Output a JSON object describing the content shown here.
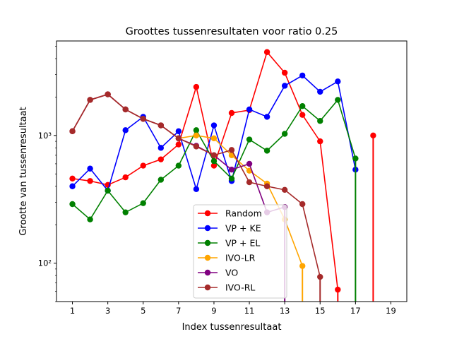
{
  "chart_data": {
    "type": "line",
    "title": "Groottes tussenresultaten voor ratio 0.25",
    "xlabel": "Index tussenresultaat",
    "ylabel": "Grootte van tussenresultaat",
    "yscale": "log",
    "xlim": [
      0.1,
      19.9
    ],
    "ylim": [
      50,
      5500
    ],
    "xticks": [
      1,
      3,
      5,
      7,
      9,
      11,
      13,
      15,
      17,
      19
    ],
    "xtick_labels": [
      "1",
      "3",
      "5",
      "7",
      "9",
      "11",
      "13",
      "15",
      "17",
      "19"
    ],
    "yticks": [
      100,
      1000
    ],
    "ytick_labels": [
      "10²",
      "10³"
    ],
    "legend_position": "lower-center",
    "series": [
      {
        "name": "Random",
        "color": "#ff0000",
        "x": [
          1,
          2,
          3,
          4,
          5,
          6,
          7,
          8,
          9,
          10,
          11,
          12,
          13,
          14,
          15,
          16,
          18
        ],
        "y": [
          460,
          440,
          410,
          470,
          580,
          650,
          850,
          2400,
          580,
          1500,
          1580,
          4500,
          3100,
          1450,
          900,
          62,
          1000
        ],
        "drop_to_axis_from": [
          16,
          18
        ],
        "skip_segment_before": [
          18
        ]
      },
      {
        "name": "VP + KE",
        "color": "#0000ff",
        "x": [
          1,
          2,
          3,
          4,
          5,
          6,
          7,
          8,
          9,
          10,
          11,
          12,
          13,
          14,
          15,
          16,
          17
        ],
        "y": [
          400,
          550,
          370,
          1100,
          1400,
          800,
          1080,
          380,
          1200,
          440,
          1600,
          1400,
          2450,
          2950,
          2200,
          2650,
          540
        ],
        "drop_to_axis_from": [],
        "skip_segment_before": []
      },
      {
        "name": "VP + EL",
        "color": "#008000",
        "x": [
          1,
          2,
          3,
          4,
          5,
          6,
          7,
          8,
          9,
          10,
          11,
          12,
          13,
          14,
          15,
          16,
          17
        ],
        "y": [
          290,
          220,
          370,
          250,
          295,
          450,
          580,
          1100,
          630,
          460,
          930,
          760,
          1030,
          1700,
          1300,
          1900,
          660
        ],
        "drop_to_axis_from": [
          17
        ],
        "skip_segment_before": []
      },
      {
        "name": "IVO-LR",
        "color": "#ffa500",
        "x": [
          1,
          2,
          3,
          4,
          5,
          6,
          7,
          8,
          9,
          10,
          11,
          12,
          13,
          14
        ],
        "y": [
          1080,
          1900,
          2100,
          1600,
          1350,
          1200,
          950,
          1000,
          950,
          700,
          530,
          420,
          220,
          95
        ],
        "drop_to_axis_from": [
          14
        ],
        "skip_segment_before": []
      },
      {
        "name": "VO",
        "color": "#800080",
        "x": [
          1,
          2,
          3,
          4,
          5,
          6,
          7,
          8,
          9,
          10,
          11,
          12,
          13
        ],
        "y": [
          1080,
          1900,
          2100,
          1600,
          1350,
          1200,
          950,
          830,
          700,
          540,
          600,
          250,
          275
        ],
        "drop_to_axis_from": [
          13
        ],
        "skip_segment_before": []
      },
      {
        "name": "IVO-RL",
        "color": "#a52a2a",
        "x": [
          1,
          2,
          3,
          4,
          5,
          6,
          7,
          8,
          9,
          10,
          11,
          12,
          13,
          14,
          15
        ],
        "y": [
          1080,
          1900,
          2100,
          1600,
          1350,
          1200,
          950,
          820,
          700,
          770,
          430,
          400,
          375,
          290,
          78
        ],
        "drop_to_axis_from": [
          15
        ],
        "skip_segment_before": []
      }
    ]
  }
}
